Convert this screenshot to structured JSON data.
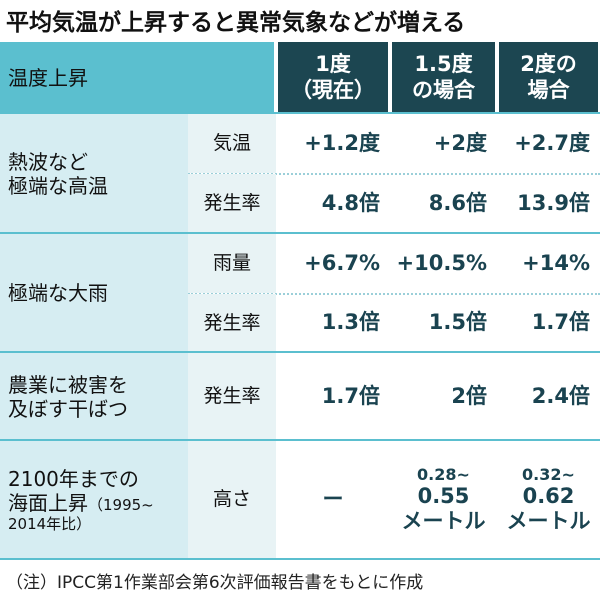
{
  "title": "平均気温が上昇すると異常気象などが増える",
  "table": {
    "corner": "温度上昇",
    "columns": [
      [
        "1度",
        "（現在）"
      ],
      [
        "1.5度",
        "の場合"
      ],
      [
        "2度の",
        "場合"
      ]
    ],
    "groups": [
      {
        "label": [
          "熱波など",
          "極端な高温"
        ],
        "rows": [
          {
            "metric": "気温",
            "values": [
              "+1.2度",
              "+2度",
              "+2.7度"
            ]
          },
          {
            "metric": "発生率",
            "values": [
              "4.8倍",
              "8.6倍",
              "13.9倍"
            ]
          }
        ]
      },
      {
        "label": [
          "極端な大雨"
        ],
        "rows": [
          {
            "metric": "雨量",
            "values": [
              "+6.7%",
              "+10.5%",
              "+14%"
            ]
          },
          {
            "metric": "発生率",
            "values": [
              "1.3倍",
              "1.5倍",
              "1.7倍"
            ]
          }
        ]
      },
      {
        "label": [
          "農業に被害を",
          "及ぼす干ばつ"
        ],
        "rows": [
          {
            "metric": "発生率",
            "values": [
              "1.7倍",
              "2倍",
              "2.4倍"
            ]
          }
        ]
      },
      {
        "label": [
          "2100年までの",
          "海面上昇"
        ],
        "note": [
          "（1995~",
          "2014年比）"
        ],
        "rows": [
          {
            "metric": "高さ",
            "values": [
              [
                "ー"
              ],
              [
                "0.28~",
                "0.55",
                "メートル"
              ],
              [
                "0.32~",
                "0.62",
                "メートル"
              ]
            ]
          }
        ]
      }
    ]
  },
  "footnote": "（注）IPCC第1作業部会第6次評価報告書をもとに作成"
}
